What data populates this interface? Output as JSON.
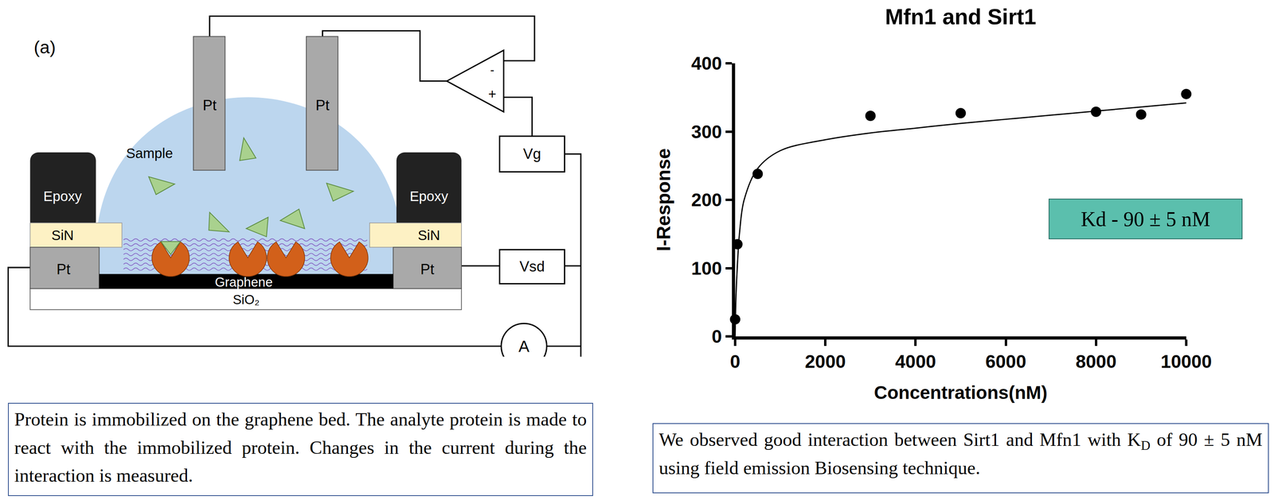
{
  "diagram": {
    "panel_label": "(a)",
    "electrodes": [
      "Pt",
      "Pt"
    ],
    "pads": [
      "Pt",
      "Pt"
    ],
    "sample": "Sample",
    "epoxy": [
      "Epoxy",
      "Epoxy"
    ],
    "insulator": [
      "SiN",
      "SiN"
    ],
    "channel": "Graphene",
    "substrate": "SiO₂",
    "opamp_inputs": [
      "-",
      "+"
    ],
    "sources": [
      "Vg",
      "Vsd"
    ],
    "meter": "A",
    "caption": "Protein is immobilized on the graphene bed. The analyte protein is made to react with the immobilized protein. Changes in the current during the interaction is measured."
  },
  "chart_data": {
    "type": "scatter",
    "title": "Mfn1 and Sirt1",
    "x_label": "Concentrations(nM)",
    "y_label": "I-Response",
    "series": [
      {
        "type": "scatter",
        "marker": "circle",
        "color": "#000000",
        "x": [
          0,
          50,
          500,
          3000,
          5000,
          8000,
          9000,
          10000
        ],
        "values": [
          25,
          135,
          238,
          323,
          327,
          329,
          325,
          355
        ]
      },
      {
        "type": "line",
        "line_style": "solid",
        "color": "#000000",
        "x": [
          0,
          20,
          50,
          100,
          200,
          500,
          1000,
          2000,
          3000,
          4000,
          5000,
          6000,
          7000,
          8000,
          9000,
          10000
        ],
        "values": [
          0,
          60,
          104,
          153,
          200,
          246,
          272,
          288,
          298,
          305,
          312,
          318,
          324,
          330,
          336,
          342
        ]
      }
    ],
    "xlim": [
      0,
      10000
    ],
    "ylim": [
      0,
      400
    ],
    "xticks": [
      0,
      2000,
      4000,
      6000,
      8000,
      10000
    ],
    "yticks": [
      0,
      100,
      200,
      300,
      400
    ],
    "grid": false,
    "annotations": [
      "Kd - 90 ± 5 nM"
    ],
    "caption": [
      {
        "text": "We observed good interaction between Sirt1 and Mfn1 with K"
      },
      {
        "text": "D",
        "sub": true
      },
      {
        "text": " of 90 ± 5 nM using field emission Biosensing technique."
      }
    ]
  }
}
